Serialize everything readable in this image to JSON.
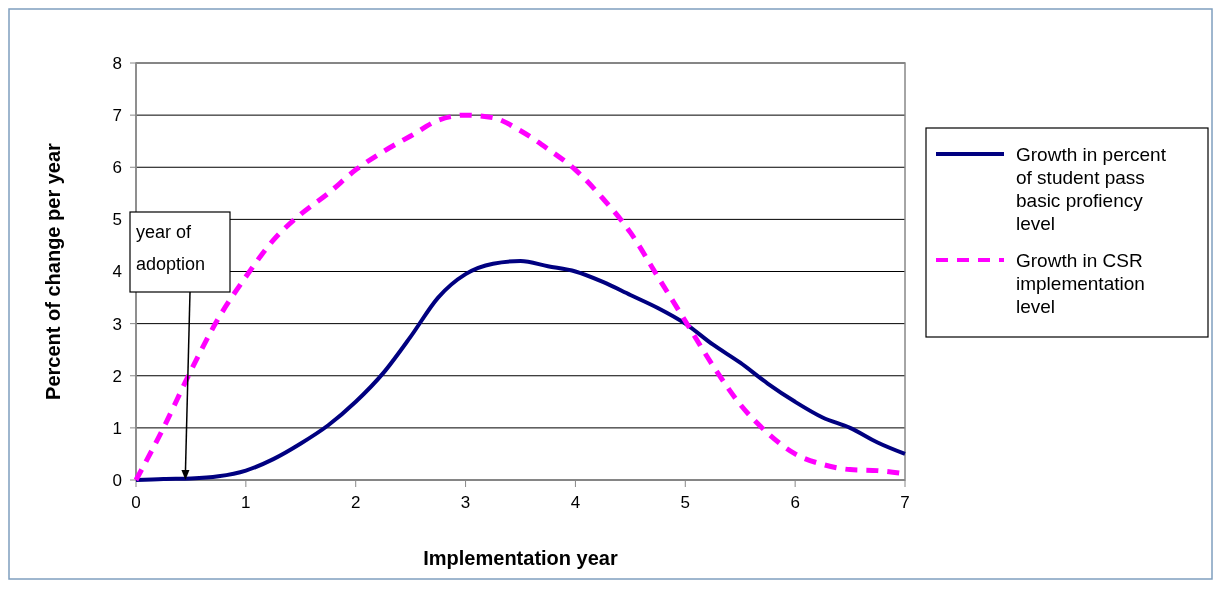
{
  "chart_data": {
    "type": "line",
    "xlabel": "Implementation year",
    "ylabel": "Percent of change per year",
    "xlim": [
      0,
      7
    ],
    "ylim": [
      0,
      8
    ],
    "xticks": [
      0,
      1,
      2,
      3,
      4,
      5,
      6,
      7
    ],
    "yticks": [
      0,
      1,
      2,
      3,
      4,
      5,
      6,
      7,
      8
    ],
    "grid": "y",
    "legend": "right",
    "marker": "none",
    "x": [
      0,
      0.25,
      0.5,
      0.75,
      1,
      1.25,
      1.5,
      1.75,
      2,
      2.25,
      2.5,
      2.75,
      3,
      3.25,
      3.5,
      3.75,
      4,
      4.25,
      4.5,
      4.75,
      5,
      5.25,
      5.5,
      5.75,
      6,
      6.25,
      6.5,
      6.75,
      7
    ],
    "series": [
      {
        "name": "Growth in percent of student pass basic profiency level",
        "color": "#000080",
        "line_style": "solid",
        "values": [
          0,
          0.02,
          0.03,
          0.07,
          0.18,
          0.4,
          0.7,
          1.05,
          1.5,
          2.05,
          2.75,
          3.5,
          3.95,
          4.15,
          4.2,
          4.1,
          4.0,
          3.8,
          3.55,
          3.3,
          3.0,
          2.6,
          2.25,
          1.85,
          1.5,
          1.2,
          1.0,
          0.72,
          0.5
        ]
      },
      {
        "name": "Growth in CSR implementation level",
        "color": "#ff00ff",
        "line_style": "dashed",
        "values": [
          0,
          1.0,
          2.1,
          3.1,
          3.9,
          4.6,
          5.1,
          5.5,
          5.95,
          6.3,
          6.6,
          6.9,
          7.0,
          6.95,
          6.7,
          6.35,
          5.95,
          5.4,
          4.75,
          3.9,
          3.05,
          2.2,
          1.45,
          0.9,
          0.5,
          0.3,
          0.2,
          0.18,
          0.12
        ]
      }
    ],
    "annotations": [
      {
        "text": "year of adoption",
        "x": 0.45,
        "y": 0
      }
    ]
  }
}
